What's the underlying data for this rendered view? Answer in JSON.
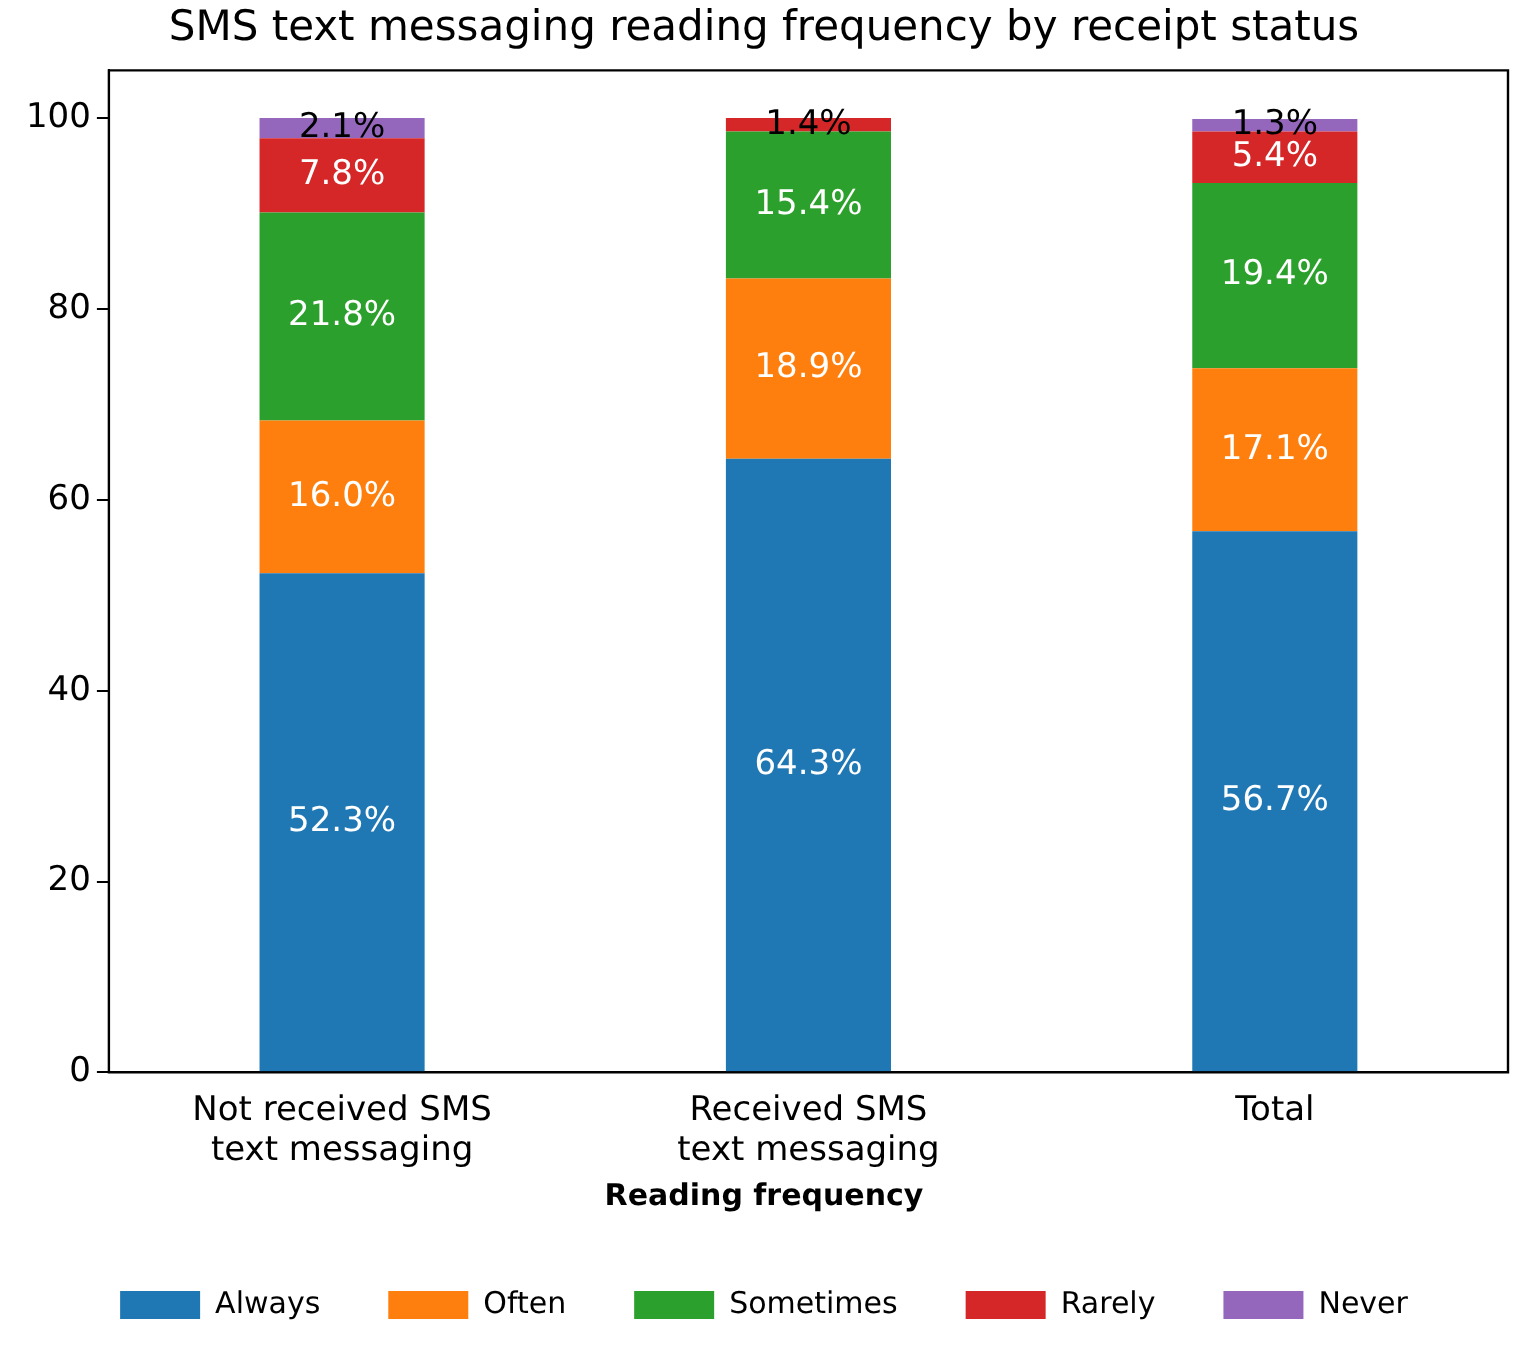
{
  "chart_data": {
    "type": "bar",
    "stacked": true,
    "title": "SMS text messaging reading frequency by receipt status",
    "categories": [
      "Not received SMS\ntext messaging",
      "Received SMS\ntext messaging",
      "Total"
    ],
    "ylim": [
      0,
      105
    ],
    "yticks": [
      0,
      20,
      40,
      60,
      80,
      100
    ],
    "grid": false,
    "legend": "bottom",
    "legend_title": "Reading frequency",
    "series": [
      {
        "name": "Always",
        "color": "#1f77b4",
        "values": [
          52.3,
          64.3,
          56.7
        ],
        "value_labels": [
          "52.3%",
          "64.3%",
          "56.7%"
        ]
      },
      {
        "name": "Often",
        "color": "#ff7f0e",
        "values": [
          16.0,
          18.9,
          17.1
        ],
        "value_labels": [
          "16.0%",
          "18.9%",
          "17.1%"
        ]
      },
      {
        "name": "Sometimes",
        "color": "#2ca02c",
        "values": [
          21.8,
          15.4,
          19.4
        ],
        "value_labels": [
          "21.8%",
          "15.4%",
          "19.4%"
        ]
      },
      {
        "name": "Rarely",
        "color": "#d62728",
        "values": [
          7.8,
          1.4,
          5.4
        ],
        "value_labels": [
          "7.8%",
          "1.4%",
          "5.4%"
        ]
      },
      {
        "name": "Never",
        "color": "#9467bd",
        "values": [
          2.1,
          0,
          1.3
        ],
        "value_labels": [
          "2.1%",
          null,
          "1.3%"
        ]
      }
    ]
  }
}
